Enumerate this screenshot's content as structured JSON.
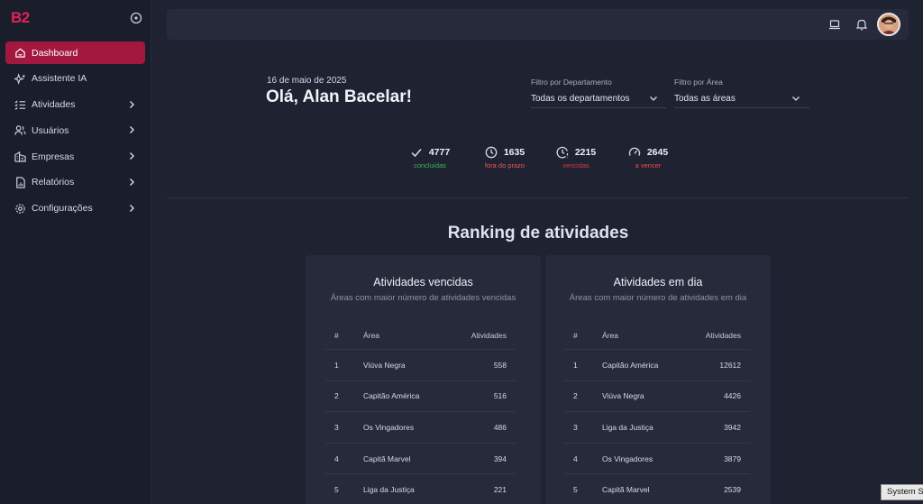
{
  "brand": {
    "logo": "B2",
    "accent": "#e4205a"
  },
  "sidebar": {
    "items": [
      {
        "label": "Dashboard",
        "icon": "home-icon",
        "active": true,
        "has_chevron": false
      },
      {
        "label": "Assistente IA",
        "icon": "sparkle-icon",
        "active": false,
        "has_chevron": false
      },
      {
        "label": "Atividades",
        "icon": "list-check-icon",
        "active": false,
        "has_chevron": true
      },
      {
        "label": "Usuários",
        "icon": "users-icon",
        "active": false,
        "has_chevron": true
      },
      {
        "label": "Empresas",
        "icon": "building-icon",
        "active": false,
        "has_chevron": true
      },
      {
        "label": "Relatórios",
        "icon": "report-icon",
        "active": false,
        "has_chevron": true
      },
      {
        "label": "Configurações",
        "icon": "gear-icon",
        "active": false,
        "has_chevron": true
      }
    ]
  },
  "topbar": {
    "icons": [
      "laptop-icon",
      "bell-icon",
      "avatar"
    ]
  },
  "header": {
    "date": "16 de maio de 2025",
    "greeting": "Olá, Alan Bacelar!"
  },
  "filters": {
    "department": {
      "label": "Filtro por Departamento",
      "value": "Todas os departamentos"
    },
    "area": {
      "label": "Filtro por Área",
      "value": "Todas as áreas"
    }
  },
  "stats": [
    {
      "value": "4777",
      "label": "concluídas",
      "color": "#3fb950",
      "icon": "check-icon"
    },
    {
      "value": "1635",
      "label": "fora do prazo",
      "color": "#f25757",
      "icon": "clock-icon"
    },
    {
      "value": "2215",
      "label": "vencidas",
      "color": "#d63a4a",
      "icon": "clock-alert-icon"
    },
    {
      "value": "2645",
      "label": "a vencer",
      "color": "#f0503a",
      "icon": "gauge-icon"
    }
  ],
  "ranking": {
    "title": "Ranking de atividades",
    "cards": [
      {
        "title": "Atividades vencidas",
        "subtitle": "Áreas com maior número de atividades vencidas",
        "columns": [
          "#",
          "Área",
          "Atividades"
        ],
        "rows": [
          [
            "1",
            "Viúva Negra",
            "558"
          ],
          [
            "2",
            "Capitão América",
            "516"
          ],
          [
            "3",
            "Os Vingadores",
            "486"
          ],
          [
            "4",
            "Capitã Marvel",
            "394"
          ],
          [
            "5",
            "Liga da Justiça",
            "221"
          ]
        ]
      },
      {
        "title": "Atividades em dia",
        "subtitle": "Áreas com maior número de atividades em dia",
        "columns": [
          "#",
          "Área",
          "Atividades"
        ],
        "rows": [
          [
            "1",
            "Capitão América",
            "12612"
          ],
          [
            "2",
            "Viúva Negra",
            "4426"
          ],
          [
            "3",
            "Liga da Justiça",
            "3942"
          ],
          [
            "4",
            "Os Vingadores",
            "3879"
          ],
          [
            "5",
            "Capitã Marvel",
            "2539"
          ]
        ]
      }
    ]
  },
  "tooltip": {
    "text": "System S"
  }
}
